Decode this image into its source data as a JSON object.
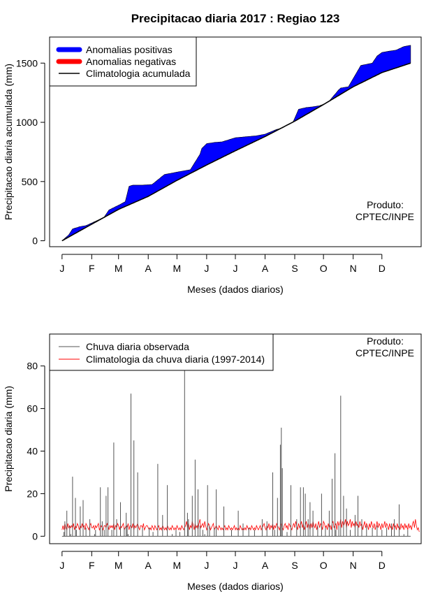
{
  "title": "Precipitacao diaria 2017 : Regiao 123",
  "colors": {
    "positive": "#0000ff",
    "negative": "#ff0000",
    "climatology": "#000000",
    "observed": "#555555",
    "clim_daily": "#ff0000"
  },
  "chart_data": [
    {
      "type": "area",
      "title": "Precipitacao diaria 2017 : Regiao 123",
      "xlabel": "Meses (dados diarios)",
      "ylabel": "Precipitacao diaria acumulada (mm)",
      "xlim": [
        -12,
        376
      ],
      "ylim": [
        -50,
        1720
      ],
      "y_ticks": [
        0,
        500,
        1000,
        1500
      ],
      "y_tick_labels": [
        "0",
        "500",
        "1000",
        "1500"
      ],
      "month_labels": [
        "J",
        "F",
        "M",
        "A",
        "M",
        "J",
        "J",
        "A",
        "S",
        "O",
        "N",
        "D"
      ],
      "month_days": [
        1,
        32,
        60,
        91,
        121,
        152,
        182,
        213,
        244,
        274,
        305,
        335
      ],
      "legend": [
        "Anomalias positivas",
        "Anomalias negativas",
        "Climatologia acumulada"
      ],
      "legend_position": "top-left",
      "annotation": [
        "Produto:",
        "CPTEC/INPE"
      ],
      "climatology_accumulated": {
        "days": [
          1,
          32,
          60,
          91,
          121,
          152,
          182,
          213,
          244,
          274,
          305,
          335,
          365
        ],
        "values": [
          0,
          140,
          265,
          375,
          510,
          640,
          760,
          880,
          1010,
          1150,
          1300,
          1420,
          1500
        ]
      },
      "observed_accumulated": {
        "days": [
          1,
          8,
          12,
          20,
          26,
          32,
          40,
          45,
          50,
          60,
          67,
          71,
          75,
          85,
          95,
          108,
          115,
          121,
          135,
          145,
          147,
          152,
          160,
          168,
          182,
          195,
          203,
          213,
          225,
          230,
          236,
          240,
          248,
          256,
          262,
          270,
          279,
          290,
          292,
          300,
          313,
          325,
          330,
          335,
          342,
          350,
          358,
          365
        ],
        "values": [
          0,
          50,
          100,
          120,
          128,
          150,
          180,
          200,
          260,
          300,
          330,
          460,
          470,
          470,
          475,
          560,
          570,
          580,
          600,
          730,
          780,
          820,
          830,
          835,
          870,
          880,
          885,
          900,
          940,
          950,
          955,
          960,
          1110,
          1125,
          1130,
          1140,
          1170,
          1275,
          1290,
          1300,
          1480,
          1500,
          1560,
          1590,
          1600,
          1610,
          1640,
          1650
        ]
      }
    },
    {
      "type": "bar",
      "xlabel": "Meses (dados diarios)",
      "ylabel": "Precipitacao diaria (mm)",
      "xlim": [
        -12,
        376
      ],
      "ylim": [
        -3.5,
        95
      ],
      "y_ticks": [
        0,
        20,
        40,
        60,
        80
      ],
      "y_tick_labels": [
        "0",
        "20",
        "40",
        "60",
        "80"
      ],
      "month_labels": [
        "J",
        "F",
        "M",
        "A",
        "M",
        "J",
        "J",
        "A",
        "S",
        "O",
        "N",
        "D"
      ],
      "month_days": [
        1,
        32,
        60,
        91,
        121,
        152,
        182,
        213,
        244,
        274,
        305,
        335
      ],
      "legend": [
        "Chuva diaria observada",
        "Climatologia da chuva diaria (1997-2014)"
      ],
      "legend_position": "top-left",
      "annotation": [
        "Produto:",
        "CPTEC/INPE"
      ],
      "observed_spikes": {
        "days": [
          3,
          4,
          6,
          9,
          10,
          12,
          15,
          16,
          20,
          23,
          26,
          30,
          35,
          36,
          41,
          43,
          45,
          47,
          49,
          53,
          55,
          58,
          62,
          66,
          68,
          69,
          70,
          73,
          76,
          80,
          85,
          92,
          96,
          101,
          106,
          111,
          116,
          120,
          124,
          129,
          132,
          133,
          137,
          140,
          143,
          145,
          148,
          150,
          153,
          155,
          160,
          162,
          170,
          178,
          185,
          190,
          196,
          202,
          210,
          215,
          221,
          223,
          226,
          229,
          230,
          231,
          236,
          240,
          246,
          250,
          253,
          255,
          258,
          260,
          263,
          268,
          272,
          276,
          280,
          283,
          286,
          287,
          290,
          292,
          295,
          298,
          302,
          307,
          310,
          314,
          319,
          325,
          330,
          335,
          340,
          345,
          348,
          353,
          358,
          362
        ],
        "values": [
          2,
          7,
          12,
          5,
          1,
          28,
          18,
          3,
          14,
          17,
          4,
          8,
          1,
          3,
          23,
          7,
          3,
          19,
          23,
          3,
          44,
          8,
          16,
          4,
          11,
          5,
          1,
          67,
          45,
          30,
          4,
          4,
          2,
          34,
          10,
          24,
          1,
          3,
          2,
          78,
          11,
          8,
          19,
          36,
          22,
          5,
          3,
          1,
          24,
          5,
          4,
          22,
          14,
          3,
          12,
          6,
          4,
          3,
          8,
          7,
          30,
          3,
          18,
          43,
          51,
          32,
          2,
          24,
          8,
          23,
          23,
          20,
          8,
          16,
          12,
          5,
          20,
          4,
          12,
          27,
          39,
          3,
          5,
          66,
          19,
          13,
          3,
          10,
          19,
          8,
          5,
          4,
          5,
          3,
          4,
          6,
          8,
          15,
          1,
          3
        ]
      },
      "climatology_daily_days_step": 1,
      "climatology_daily_values": [
        3,
        5,
        3,
        6,
        4,
        3,
        6,
        4,
        5,
        4,
        5,
        4,
        6,
        3,
        5,
        4,
        6,
        5,
        3,
        5,
        4,
        6,
        4,
        5,
        3,
        6,
        5,
        4,
        3,
        5,
        6,
        4,
        4,
        5,
        3,
        5,
        4,
        5,
        6,
        3,
        4,
        5,
        4,
        3,
        5,
        5,
        4,
        6,
        5,
        3,
        5,
        4,
        5,
        4,
        6,
        3,
        5,
        4,
        6,
        5,
        3,
        5,
        4,
        5,
        6,
        3,
        4,
        5,
        4,
        6,
        3,
        5,
        5,
        4,
        6,
        3,
        5,
        4,
        5,
        6,
        4,
        3,
        5,
        5,
        4,
        6,
        3,
        4,
        5,
        5,
        4,
        3,
        4,
        3,
        5,
        4,
        3,
        5,
        4,
        3,
        4,
        5,
        3,
        4,
        3,
        5,
        4,
        3,
        4,
        3,
        5,
        4,
        3,
        4,
        3,
        5,
        4,
        3,
        4,
        3,
        5,
        4,
        3,
        4,
        3,
        5,
        4,
        3,
        4,
        5,
        7,
        4,
        6,
        3,
        5,
        4,
        7,
        5,
        3,
        6,
        4,
        5,
        3,
        6,
        8,
        4,
        5,
        6,
        4,
        7,
        5,
        3,
        4,
        6,
        5,
        3,
        4,
        5,
        6,
        3,
        4,
        5,
        4,
        3,
        5,
        4,
        3,
        4,
        3,
        4,
        5,
        3,
        4,
        3,
        5,
        4,
        3,
        4,
        3,
        4,
        5,
        3,
        4,
        3,
        4,
        3,
        5,
        4,
        3,
        4,
        3,
        4,
        3,
        5,
        4,
        3,
        4,
        3,
        5,
        4,
        3,
        4,
        3,
        5,
        4,
        3,
        4,
        5,
        3,
        4,
        5,
        6,
        4,
        3,
        5,
        4,
        6,
        3,
        5,
        4,
        6,
        3,
        5,
        4,
        6,
        5,
        4,
        3,
        5,
        6,
        4,
        3,
        5,
        6,
        4,
        5,
        3,
        6,
        5,
        4,
        3,
        5,
        6,
        4,
        7,
        5,
        3,
        6,
        4,
        5,
        7,
        4,
        6,
        3,
        5,
        7,
        4,
        6,
        5,
        3,
        6,
        4,
        7,
        5,
        4,
        6,
        3,
        5,
        7,
        4,
        6,
        5,
        3,
        7,
        6,
        4,
        5,
        3,
        6,
        4,
        5,
        3,
        6,
        7,
        4,
        5,
        6,
        3,
        7,
        5,
        6,
        8,
        4,
        7,
        5,
        6,
        8,
        4,
        7,
        5,
        6,
        8,
        4,
        7,
        5,
        6,
        4,
        7,
        5,
        6,
        4,
        7,
        5,
        6,
        3,
        5,
        7,
        4,
        6,
        5,
        3,
        6,
        4,
        7,
        5,
        4,
        6,
        3,
        5,
        7,
        4,
        6,
        5,
        3,
        6,
        4,
        5,
        7,
        4,
        6,
        5,
        3,
        6,
        4,
        5,
        3,
        6,
        4,
        5,
        3,
        6,
        4,
        5,
        3,
        6,
        4,
        5,
        3,
        6,
        4,
        5,
        3,
        6,
        4,
        5,
        3,
        6,
        7,
        4,
        8,
        5,
        3,
        4,
        2
      ]
    }
  ]
}
